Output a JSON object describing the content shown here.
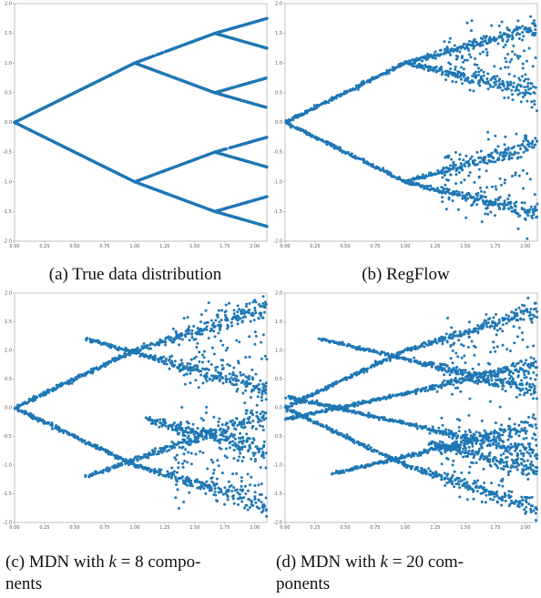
{
  "figure": {
    "panels": [
      {
        "id": "a",
        "caption": "(a) True data distribution",
        "caption_lines": [
          "(a) True data distribution"
        ],
        "caption_align": "center",
        "chart_ref": 0
      },
      {
        "id": "b",
        "caption": "(b) RegFlow",
        "caption_lines": [
          "(b) RegFlow"
        ],
        "caption_align": "center",
        "chart_ref": 1
      },
      {
        "id": "c",
        "caption": "(c) MDN with k = 8 components",
        "caption_lines": [
          "(c) MDN with ",
          "k",
          " = 8 compo-",
          "nents"
        ],
        "caption_align": "left",
        "chart_ref": 2
      },
      {
        "id": "d",
        "caption": "(d) MDN with k = 20 components",
        "caption_lines": [
          "(d) MDN with ",
          "k",
          " = 20 com-",
          "ponents"
        ],
        "caption_align": "left",
        "chart_ref": 3
      }
    ],
    "point_color": "#1f77b4"
  },
  "chart_data": [
    {
      "type": "scatter",
      "title": "",
      "xlabel": "",
      "ylabel": "",
      "xlim": [
        0.0,
        2.1
      ],
      "ylim": [
        -2.0,
        2.0
      ],
      "xticks": [
        "0.00",
        "0.25",
        "0.50",
        "0.75",
        "1.00",
        "1.25",
        "1.50",
        "1.75",
        "2.00"
      ],
      "yticks": [
        "2.0",
        "1.5",
        "1.0",
        "0.5",
        "0.0",
        "-0.5",
        "-1.0",
        "-1.5",
        "-2.0"
      ],
      "grid": false,
      "noise": 0.0,
      "scatter_points": 0,
      "branches": [
        {
          "from": [
            0.0,
            0.0
          ],
          "to": [
            1.0,
            1.0
          ]
        },
        {
          "from": [
            0.0,
            0.0
          ],
          "to": [
            1.0,
            -1.0
          ]
        },
        {
          "from": [
            1.0,
            1.0
          ],
          "to": [
            1.667,
            1.5
          ]
        },
        {
          "from": [
            1.0,
            1.0
          ],
          "to": [
            1.667,
            0.5
          ]
        },
        {
          "from": [
            1.0,
            -1.0
          ],
          "to": [
            1.667,
            -0.5
          ]
        },
        {
          "from": [
            1.0,
            -1.0
          ],
          "to": [
            1.667,
            -1.5
          ]
        },
        {
          "from": [
            1.667,
            1.5
          ],
          "to": [
            2.1,
            1.75
          ]
        },
        {
          "from": [
            1.667,
            1.5
          ],
          "to": [
            2.1,
            1.25
          ]
        },
        {
          "from": [
            1.667,
            0.5
          ],
          "to": [
            2.1,
            0.75
          ]
        },
        {
          "from": [
            1.667,
            0.5
          ],
          "to": [
            2.1,
            0.25
          ]
        },
        {
          "from": [
            1.667,
            -0.5
          ],
          "to": [
            2.1,
            -0.25
          ]
        },
        {
          "from": [
            1.667,
            -0.5
          ],
          "to": [
            2.1,
            -0.75
          ]
        },
        {
          "from": [
            1.667,
            -1.5
          ],
          "to": [
            2.1,
            -1.25
          ]
        },
        {
          "from": [
            1.667,
            -1.5
          ],
          "to": [
            2.1,
            -1.75
          ]
        }
      ]
    },
    {
      "type": "scatter",
      "title": "",
      "xlabel": "",
      "ylabel": "",
      "xlim": [
        0.0,
        2.1
      ],
      "ylim": [
        -2.0,
        2.0
      ],
      "xticks": [
        "0.00",
        "0.25",
        "0.50",
        "0.75",
        "1.00",
        "1.25",
        "1.50",
        "1.75",
        "2.00"
      ],
      "yticks": [
        "2.0",
        "1.5",
        "1.0",
        "0.5",
        "0.0",
        "-0.5",
        "-1.0",
        "-1.5",
        "-2.0"
      ],
      "grid": false,
      "noise": 0.035,
      "scatter_points": 260,
      "branches": [
        {
          "from": [
            0.0,
            0.0
          ],
          "to": [
            1.0,
            1.0
          ]
        },
        {
          "from": [
            0.0,
            0.0
          ],
          "to": [
            1.0,
            -1.0
          ]
        },
        {
          "from": [
            1.0,
            1.0
          ],
          "to": [
            2.1,
            1.6
          ]
        },
        {
          "from": [
            1.0,
            1.0
          ],
          "to": [
            2.1,
            0.5
          ]
        },
        {
          "from": [
            1.0,
            -1.0
          ],
          "to": [
            2.1,
            -0.35
          ]
        },
        {
          "from": [
            1.0,
            -1.0
          ],
          "to": [
            2.1,
            -1.55
          ]
        }
      ]
    },
    {
      "type": "scatter",
      "title": "",
      "xlabel": "",
      "ylabel": "",
      "xlim": [
        0.0,
        2.1
      ],
      "ylim": [
        -2.0,
        2.0
      ],
      "xticks": [
        "0.00",
        "0.25",
        "0.50",
        "0.75",
        "1.00",
        "1.25",
        "1.50",
        "1.75",
        "2.00"
      ],
      "yticks": [
        "2.0",
        "1.5",
        "1.0",
        "0.5",
        "0.0",
        "-0.5",
        "-1.0",
        "-1.5",
        "-2.0"
      ],
      "grid": false,
      "noise": 0.045,
      "scatter_points": 300,
      "branches": [
        {
          "from": [
            0.0,
            0.0
          ],
          "to": [
            1.0,
            1.0
          ]
        },
        {
          "from": [
            0.0,
            0.0
          ],
          "to": [
            1.0,
            -1.0
          ]
        },
        {
          "from": [
            1.0,
            1.0
          ],
          "to": [
            2.1,
            1.75
          ]
        },
        {
          "from": [
            1.0,
            -1.0
          ],
          "to": [
            2.1,
            -1.7
          ]
        },
        {
          "from": [
            0.6,
            1.2
          ],
          "to": [
            2.1,
            0.3
          ]
        },
        {
          "from": [
            0.6,
            -1.2
          ],
          "to": [
            2.1,
            -0.1
          ]
        },
        {
          "from": [
            1.1,
            -0.2
          ],
          "to": [
            2.1,
            -0.75
          ]
        }
      ]
    },
    {
      "type": "scatter",
      "title": "",
      "xlabel": "",
      "ylabel": "",
      "xlim": [
        0.0,
        2.1
      ],
      "ylim": [
        -2.0,
        2.0
      ],
      "xticks": [
        "0.00",
        "0.25",
        "0.50",
        "0.75",
        "1.00",
        "1.25",
        "1.50",
        "1.75",
        "2.00"
      ],
      "yticks": [
        "2.0",
        "1.5",
        "1.0",
        "0.5",
        "0.0",
        "-0.5",
        "-1.0",
        "-1.5",
        "-2.0"
      ],
      "grid": false,
      "noise": 0.04,
      "scatter_points": 260,
      "branches": [
        {
          "from": [
            0.0,
            0.0
          ],
          "to": [
            1.0,
            1.0
          ]
        },
        {
          "from": [
            0.0,
            0.0
          ],
          "to": [
            1.0,
            -1.0
          ]
        },
        {
          "from": [
            1.0,
            1.0
          ],
          "to": [
            2.1,
            1.7
          ]
        },
        {
          "from": [
            1.0,
            -1.0
          ],
          "to": [
            2.1,
            -1.75
          ]
        },
        {
          "from": [
            0.0,
            -0.2
          ],
          "to": [
            2.1,
            0.75
          ]
        },
        {
          "from": [
            0.0,
            0.2
          ],
          "to": [
            2.1,
            -0.8
          ]
        },
        {
          "from": [
            0.3,
            1.2
          ],
          "to": [
            2.1,
            0.3
          ]
        },
        {
          "from": [
            0.4,
            -1.15
          ],
          "to": [
            2.1,
            -0.3
          ]
        },
        {
          "from": [
            1.2,
            -0.6
          ],
          "to": [
            2.1,
            -1.1
          ]
        }
      ]
    }
  ]
}
